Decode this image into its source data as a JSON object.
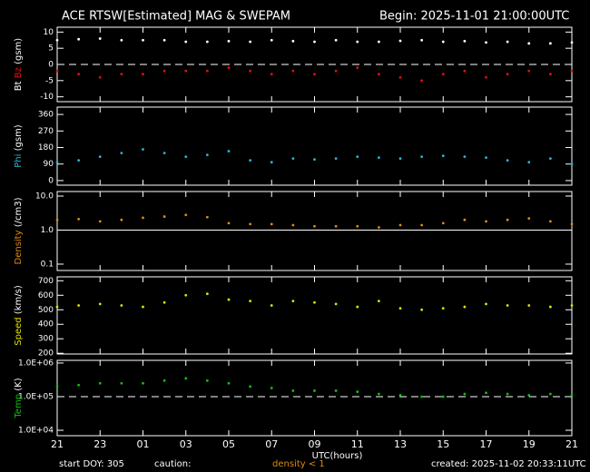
{
  "header": {
    "title": "ACE RTSW[Estimated] MAG & SWEPAM",
    "begin": "Begin: 2025-11-01 21:00:00UTC"
  },
  "footer": {
    "start": "start DOY: 305",
    "caution": "caution:",
    "density_note": "density < 1",
    "created": "created: 2025-11-02 20:33:11UTC"
  },
  "chart_data": [
    {
      "type": "scatter",
      "ylabel_unit": "(gsm)",
      "x": [
        0,
        1,
        2,
        3,
        4,
        5,
        6,
        7,
        8,
        9,
        10,
        11,
        12,
        13,
        14,
        15,
        16,
        17,
        18,
        19,
        20,
        21,
        22,
        23,
        24
      ],
      "xlim": [
        0,
        24
      ],
      "ylim": [
        -11.5,
        11.5
      ],
      "yticks": [
        -10,
        -5,
        0,
        5,
        10
      ],
      "ref_line": 0,
      "ref_line_style": "dashed",
      "log": false,
      "series": [
        {
          "name": "Bt",
          "color": "#ffffff",
          "values": [
            7.5,
            7.8,
            8,
            7.5,
            7.5,
            7.5,
            7,
            7,
            7.2,
            7,
            7.5,
            7.2,
            7,
            7.5,
            7,
            7,
            7.3,
            7.5,
            7,
            7.2,
            6.8,
            7,
            6.5,
            6.5,
            6.8
          ]
        },
        {
          "name": "Bz",
          "color": "#e01010",
          "values": [
            -2,
            -3,
            -4,
            -3,
            -3,
            -2,
            -2,
            -2,
            -1,
            -2,
            -3,
            -2,
            -3,
            -2,
            -1,
            -3,
            -4,
            -5,
            -3,
            -2,
            -4,
            -3,
            -2,
            -3,
            -2
          ]
        }
      ]
    },
    {
      "type": "scatter",
      "ylabel_unit": "(gsm)",
      "x": [
        0,
        1,
        2,
        3,
        4,
        5,
        6,
        7,
        8,
        9,
        10,
        11,
        12,
        13,
        14,
        15,
        16,
        17,
        18,
        19,
        20,
        21,
        22,
        23,
        24
      ],
      "xlim": [
        0,
        24
      ],
      "ylim": [
        -25,
        400
      ],
      "yticks": [
        0,
        90,
        180,
        270,
        360
      ],
      "log": false,
      "series": [
        {
          "name": "Phi",
          "color": "#2ab4d4",
          "values": [
            100,
            110,
            130,
            150,
            170,
            150,
            130,
            140,
            160,
            110,
            100,
            120,
            115,
            120,
            130,
            125,
            120,
            130,
            135,
            130,
            125,
            110,
            100,
            120,
            90
          ]
        }
      ]
    },
    {
      "type": "scatter",
      "ylabel_unit": "(/cm3)",
      "x": [
        0,
        1,
        2,
        3,
        4,
        5,
        6,
        7,
        8,
        9,
        10,
        11,
        12,
        13,
        14,
        15,
        16,
        17,
        18,
        19,
        20,
        21,
        22,
        23,
        24
      ],
      "xlim": [
        0,
        24
      ],
      "ylim": [
        0.065,
        13.6
      ],
      "yticks": [
        0.1,
        {
          "value": 1,
          "label": "1.0"
        },
        {
          "value": 10,
          "label": "10.0"
        }
      ],
      "ref_line": 1,
      "ref_line_style": "solid",
      "log": true,
      "series": [
        {
          "name": "Density",
          "color": "#e08a10",
          "values": [
            2,
            2.1,
            1.8,
            2,
            2.3,
            2.5,
            2.8,
            2.4,
            1.6,
            1.5,
            1.5,
            1.4,
            1.3,
            1.3,
            1.3,
            1.2,
            1.4,
            1.4,
            1.6,
            2,
            1.8,
            2,
            2.2,
            1.8,
            1.5
          ]
        }
      ]
    },
    {
      "type": "scatter",
      "ylabel_unit": "(km/s)",
      "x": [
        0,
        1,
        2,
        3,
        4,
        5,
        6,
        7,
        8,
        9,
        10,
        11,
        12,
        13,
        14,
        15,
        16,
        17,
        18,
        19,
        20,
        21,
        22,
        23,
        24
      ],
      "xlim": [
        0,
        24
      ],
      "ylim": [
        195,
        727
      ],
      "yticks": [
        200,
        300,
        400,
        500,
        600,
        700
      ],
      "log": false,
      "series": [
        {
          "name": "Speed",
          "color": "#e0e000",
          "values": [
            520,
            530,
            540,
            530,
            520,
            550,
            600,
            610,
            570,
            560,
            530,
            560,
            550,
            540,
            520,
            560,
            510,
            500,
            510,
            520,
            540,
            530,
            530,
            520,
            530
          ]
        }
      ]
    },
    {
      "type": "scatter",
      "ylabel_unit": "(K)",
      "x": [
        0,
        1,
        2,
        3,
        4,
        5,
        6,
        7,
        8,
        9,
        10,
        11,
        12,
        13,
        14,
        15,
        16,
        17,
        18,
        19,
        20,
        21,
        22,
        23,
        24
      ],
      "xlim": [
        0,
        24
      ],
      "ylim": [
        6900,
        1200000
      ],
      "yticks": [
        {
          "value": 10000,
          "label": "1.0E+04"
        },
        {
          "value": 100000,
          "label": "1.0E+05"
        },
        {
          "value": 1000000,
          "label": "1.0E+06"
        }
      ],
      "ref_line": 100000,
      "ref_line_style": "dashed",
      "log": true,
      "xlabel": "UTC(hours)",
      "xticks": [
        {
          "value": 0,
          "label": "21"
        },
        {
          "value": 2,
          "label": "23"
        },
        {
          "value": 4,
          "label": "01"
        },
        {
          "value": 6,
          "label": "03"
        },
        {
          "value": 8,
          "label": "05"
        },
        {
          "value": 10,
          "label": "07"
        },
        {
          "value": 12,
          "label": "09"
        },
        {
          "value": 14,
          "label": "11"
        },
        {
          "value": 16,
          "label": "13"
        },
        {
          "value": 18,
          "label": "15"
        },
        {
          "value": 20,
          "label": "17"
        },
        {
          "value": 22,
          "label": "19"
        },
        {
          "value": 24,
          "label": "21"
        }
      ],
      "series": [
        {
          "name": "Temp",
          "color": "#10c010",
          "values": [
            200000,
            220000,
            250000,
            250000,
            250000,
            300000,
            350000,
            300000,
            250000,
            200000,
            180000,
            150000,
            150000,
            150000,
            140000,
            120000,
            110000,
            100000,
            100000,
            120000,
            130000,
            120000,
            110000,
            120000,
            110000
          ]
        }
      ]
    }
  ]
}
